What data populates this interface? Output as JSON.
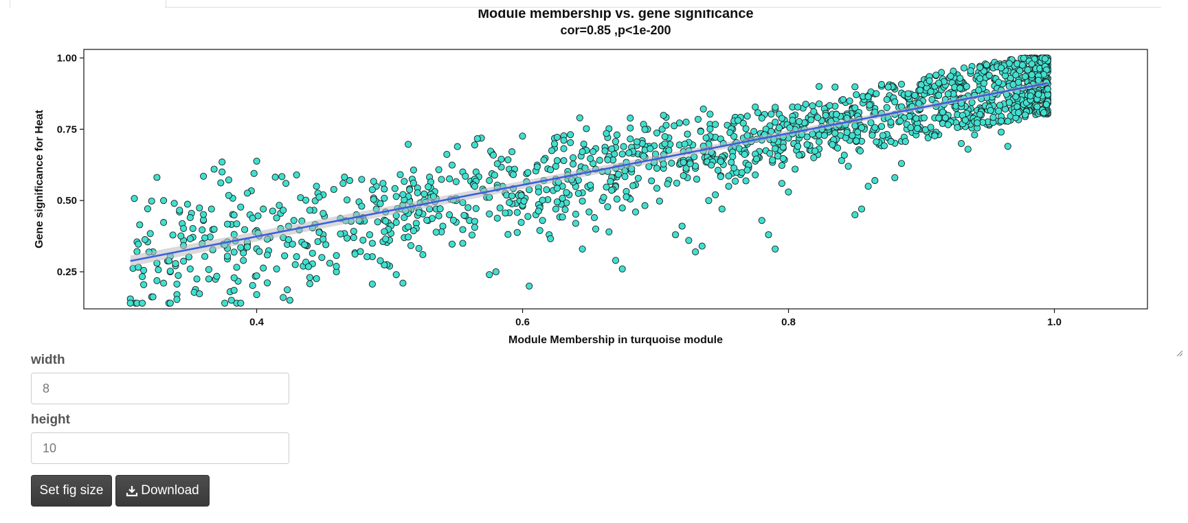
{
  "chart_data": {
    "type": "scatter",
    "title": "Module membership vs. gene significance",
    "subtitle": "cor=0.85 ,p<1e-200",
    "xlabel": "Module Membership in turquoise module",
    "ylabel": "Gene significance for  Heat",
    "xlim": [
      0.27,
      1.07
    ],
    "ylim": [
      0.12,
      1.03
    ],
    "xticks": [
      "0.4",
      "0.6",
      "0.8",
      "1.0"
    ],
    "yticks": [
      "0.25",
      "0.50",
      "0.75",
      "1.00"
    ],
    "point_color": "#40E0D0",
    "point_edge_color": "#1a1a1a",
    "fit_color": "#3a5ee0",
    "fit": {
      "x": [
        0.305,
        0.995
      ],
      "y": [
        0.288,
        0.912
      ]
    },
    "grid": false,
    "points": [
      [
        0.305,
        0.155
      ],
      [
        0.31,
        0.355
      ],
      [
        0.318,
        0.355
      ],
      [
        0.322,
        0.32
      ],
      [
        0.325,
        0.28
      ],
      [
        0.33,
        0.21
      ],
      [
        0.335,
        0.25
      ],
      [
        0.34,
        0.17
      ],
      [
        0.345,
        0.36
      ],
      [
        0.35,
        0.26
      ],
      [
        0.33,
        0.5
      ],
      [
        0.338,
        0.49
      ],
      [
        0.342,
        0.46
      ],
      [
        0.36,
        0.585
      ],
      [
        0.368,
        0.61
      ],
      [
        0.374,
        0.635
      ],
      [
        0.38,
        0.18
      ],
      [
        0.385,
        0.14
      ],
      [
        0.39,
        0.29
      ],
      [
        0.395,
        0.45
      ],
      [
        0.4,
        0.17
      ],
      [
        0.405,
        0.47
      ],
      [
        0.41,
        0.37
      ],
      [
        0.415,
        0.26
      ],
      [
        0.42,
        0.16
      ],
      [
        0.425,
        0.15
      ],
      [
        0.43,
        0.59
      ],
      [
        0.435,
        0.27
      ],
      [
        0.44,
        0.23
      ],
      [
        0.445,
        0.55
      ],
      [
        0.45,
        0.52
      ],
      [
        0.455,
        0.28
      ],
      [
        0.46,
        0.25
      ],
      [
        0.465,
        0.56
      ],
      [
        0.47,
        0.57
      ],
      [
        0.475,
        0.45
      ],
      [
        0.48,
        0.44
      ],
      [
        0.485,
        0.38
      ],
      [
        0.49,
        0.55
      ],
      [
        0.495,
        0.56
      ],
      [
        0.5,
        0.27
      ],
      [
        0.505,
        0.24
      ],
      [
        0.51,
        0.21
      ],
      [
        0.515,
        0.5
      ],
      [
        0.52,
        0.42
      ],
      [
        0.525,
        0.31
      ],
      [
        0.53,
        0.47
      ],
      [
        0.535,
        0.47
      ],
      [
        0.54,
        0.41
      ],
      [
        0.545,
        0.45
      ],
      [
        0.55,
        0.5
      ],
      [
        0.555,
        0.35
      ],
      [
        0.56,
        0.43
      ],
      [
        0.565,
        0.6
      ],
      [
        0.57,
        0.54
      ],
      [
        0.575,
        0.24
      ],
      [
        0.58,
        0.25
      ],
      [
        0.585,
        0.55
      ],
      [
        0.59,
        0.61
      ],
      [
        0.595,
        0.49
      ],
      [
        0.6,
        0.48
      ],
      [
        0.605,
        0.2
      ],
      [
        0.61,
        0.45
      ],
      [
        0.615,
        0.43
      ],
      [
        0.62,
        0.38
      ],
      [
        0.625,
        0.47
      ],
      [
        0.63,
        0.55
      ],
      [
        0.635,
        0.52
      ],
      [
        0.64,
        0.42
      ],
      [
        0.645,
        0.33
      ],
      [
        0.65,
        0.46
      ],
      [
        0.655,
        0.4
      ],
      [
        0.66,
        0.5
      ],
      [
        0.665,
        0.39
      ],
      [
        0.67,
        0.29
      ],
      [
        0.675,
        0.26
      ],
      [
        0.68,
        0.51
      ],
      [
        0.685,
        0.46
      ],
      [
        0.69,
        0.71
      ],
      [
        0.695,
        0.69
      ],
      [
        0.7,
        0.65
      ],
      [
        0.705,
        0.75
      ],
      [
        0.71,
        0.72
      ],
      [
        0.715,
        0.38
      ],
      [
        0.72,
        0.41
      ],
      [
        0.725,
        0.36
      ],
      [
        0.73,
        0.32
      ],
      [
        0.735,
        0.34
      ],
      [
        0.74,
        0.5
      ],
      [
        0.745,
        0.52
      ],
      [
        0.75,
        0.47
      ],
      [
        0.755,
        0.55
      ],
      [
        0.76,
        0.7
      ],
      [
        0.765,
        0.67
      ],
      [
        0.77,
        0.62
      ],
      [
        0.775,
        0.59
      ],
      [
        0.78,
        0.43
      ],
      [
        0.785,
        0.38
      ],
      [
        0.79,
        0.33
      ],
      [
        0.795,
        0.56
      ],
      [
        0.8,
        0.53
      ],
      [
        0.805,
        0.61
      ],
      [
        0.81,
        0.66
      ],
      [
        0.815,
        0.79
      ],
      [
        0.82,
        0.8
      ],
      [
        0.825,
        0.78
      ],
      [
        0.83,
        0.74
      ],
      [
        0.835,
        0.69
      ],
      [
        0.84,
        0.64
      ],
      [
        0.845,
        0.62
      ],
      [
        0.85,
        0.45
      ],
      [
        0.855,
        0.47
      ],
      [
        0.86,
        0.55
      ],
      [
        0.865,
        0.57
      ],
      [
        0.87,
        0.76
      ],
      [
        0.875,
        0.72
      ],
      [
        0.88,
        0.58
      ],
      [
        0.885,
        0.63
      ],
      [
        0.89,
        0.82
      ],
      [
        0.895,
        0.84
      ],
      [
        0.9,
        0.75
      ],
      [
        0.905,
        0.72
      ],
      [
        0.91,
        0.79
      ],
      [
        0.915,
        0.81
      ],
      [
        0.92,
        0.77
      ],
      [
        0.925,
        0.83
      ],
      [
        0.93,
        0.7
      ],
      [
        0.935,
        0.68
      ],
      [
        0.94,
        0.73
      ],
      [
        0.945,
        0.8
      ],
      [
        0.95,
        0.86
      ],
      [
        0.955,
        0.81
      ],
      [
        0.96,
        0.74
      ],
      [
        0.965,
        0.69
      ],
      [
        0.97,
        0.85
      ],
      [
        0.975,
        0.88
      ],
      [
        0.98,
        0.91
      ],
      [
        0.985,
        0.9
      ],
      [
        0.99,
        0.92
      ],
      [
        0.995,
        0.91
      ]
    ]
  },
  "form": {
    "width_label": "width",
    "width_value": "8",
    "height_label": "height",
    "height_value": "10",
    "set_size_label": "Set fig size",
    "download_label": "Download"
  }
}
